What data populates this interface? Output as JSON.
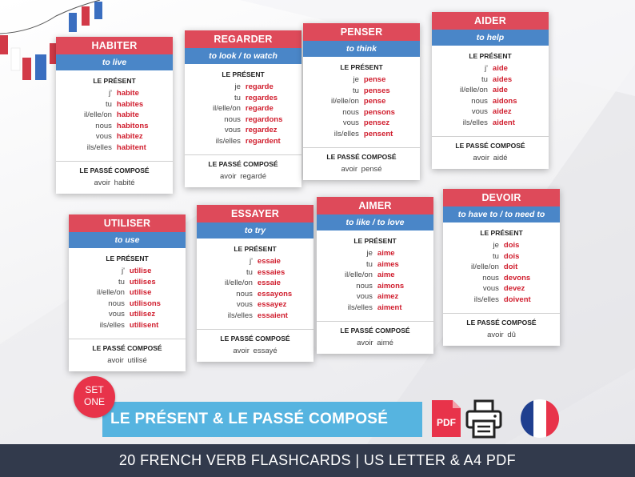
{
  "cards": [
    {
      "verb": "HABITER",
      "translation": "to live",
      "present_label": "LE PRÉSENT",
      "pronouns": [
        "j'",
        "tu",
        "il/elle/on",
        "nous",
        "vous",
        "ils/elles"
      ],
      "forms": [
        "habite",
        "habites",
        "habite",
        "habitons",
        "habitez",
        "habitent"
      ],
      "pc_label": "LE PASSÉ COMPOSÉ",
      "pc_value": "avoir habité"
    },
    {
      "verb": "REGARDER",
      "translation": "to look / to watch",
      "present_label": "LE PRÉSENT",
      "pronouns": [
        "je",
        "tu",
        "il/elle/on",
        "nous",
        "vous",
        "ils/elles"
      ],
      "forms": [
        "regarde",
        "regardes",
        "regarde",
        "regardons",
        "regardez",
        "regardent"
      ],
      "pc_label": "LE PASSÉ COMPOSÉ",
      "pc_value": "avoir regardé"
    },
    {
      "verb": "PENSER",
      "translation": "to think",
      "present_label": "LE PRÉSENT",
      "pronouns": [
        "je",
        "tu",
        "il/elle/on",
        "nous",
        "vous",
        "ils/elles"
      ],
      "forms": [
        "pense",
        "penses",
        "pense",
        "pensons",
        "pensez",
        "pensent"
      ],
      "pc_label": "LE PASSÉ COMPOSÉ",
      "pc_value": "avoir pensé"
    },
    {
      "verb": "AIDER",
      "translation": "to help",
      "present_label": "LE PRÉSENT",
      "pronouns": [
        "j'",
        "tu",
        "il/elle/on",
        "nous",
        "vous",
        "ils/elles"
      ],
      "forms": [
        "aide",
        "aides",
        "aide",
        "aidons",
        "aidez",
        "aident"
      ],
      "pc_label": "LE PASSÉ COMPOSÉ",
      "pc_value": "avoir aidé"
    },
    {
      "verb": "UTILISER",
      "translation": "to use",
      "present_label": "LE PRÉSENT",
      "pronouns": [
        "j'",
        "tu",
        "il/elle/on",
        "nous",
        "vous",
        "ils/elles"
      ],
      "forms": [
        "utilise",
        "utilises",
        "utilise",
        "utilisons",
        "utilisez",
        "utilisent"
      ],
      "pc_label": "LE PASSÉ COMPOSÉ",
      "pc_value": "avoir utilisé"
    },
    {
      "verb": "ESSAYER",
      "translation": "to try",
      "present_label": "LE PRÉSENT",
      "pronouns": [
        "j'",
        "tu",
        "il/elle/on",
        "nous",
        "vous",
        "ils/elles"
      ],
      "forms": [
        "essaie",
        "essaies",
        "essaie",
        "essayons",
        "essayez",
        "essaient"
      ],
      "pc_label": "LE PASSÉ COMPOSÉ",
      "pc_value": "avoir essayé"
    },
    {
      "verb": "AIMER",
      "translation": "to like / to love",
      "present_label": "LE PRÉSENT",
      "pronouns": [
        "je",
        "tu",
        "il/elle/on",
        "nous",
        "vous",
        "ils/elles"
      ],
      "forms": [
        "aime",
        "aimes",
        "aime",
        "aimons",
        "aimez",
        "aiment"
      ],
      "pc_label": "LE PASSÉ COMPOSÉ",
      "pc_value": "avoir aimé"
    },
    {
      "verb": "DEVOIR",
      "translation": "to have to / to need to",
      "present_label": "LE PRÉSENT",
      "pronouns": [
        "je",
        "tu",
        "il/elle/on",
        "nous",
        "vous",
        "ils/elles"
      ],
      "forms": [
        "dois",
        "dois",
        "doit",
        "devons",
        "devez",
        "doivent"
      ],
      "pc_label": "LE PASSÉ COMPOSÉ",
      "pc_value": "avoir dû"
    }
  ],
  "badge": {
    "line1": "SET",
    "line2": "ONE"
  },
  "title": "LE  PRÉSENT & LE PASSÉ COMPOSÉ",
  "pdf_label": "PDF",
  "footer": "20 FRENCH VERB FLASHCARDS | US LETTER & A4 PDF",
  "colors": {
    "verb_header": "#de4a5a",
    "translation_bar": "#4a86c8",
    "forms": "#d01e2e",
    "banner": "#56b4e0",
    "footer": "#323a4c",
    "badge": "#e8334a"
  },
  "icons": [
    "pdf-file-icon",
    "printer-icon",
    "french-flag-icon",
    "bunting-flags"
  ]
}
